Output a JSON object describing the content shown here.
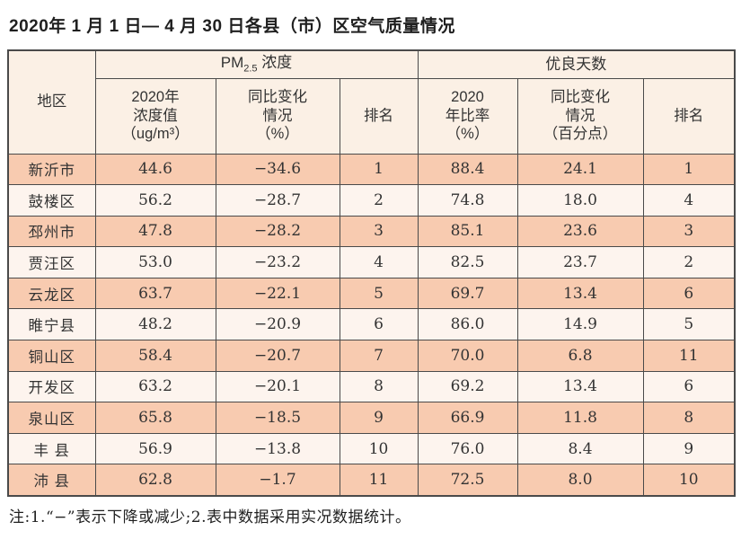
{
  "title": "2020年 1 月 1 日— 4 月 30 日各县（市）区空气质量情况",
  "note": "注:1.“−”表示下降或减少;2.表中数据采用实况数据统计。",
  "colors": {
    "row_odd": "#f8cbb0",
    "row_even": "#fdf4ee",
    "header_bg": "#fbf0e5",
    "border": "#4a4a4a",
    "text": "#333333"
  },
  "table": {
    "header": {
      "area": "地区",
      "pm_prefix": "PM",
      "pm_sub": "2.5",
      "pm_rest": " 浓度",
      "days_group": "优良天数",
      "pm_value": "2020年\n浓度值\n（ug/m³）",
      "pm_change": "同比变化\n情况\n（%）",
      "pm_rank": "排名",
      "days_rate": "2020\n年比率\n（%）",
      "days_change": "同比变化\n情况\n（百分点）",
      "days_rank": "排名"
    },
    "rows": [
      {
        "area": "新沂市",
        "pm_value": "44.6",
        "pm_change": "−34.6",
        "pm_rank": "1",
        "days_rate": "88.4",
        "days_change": "24.1",
        "days_rank": "1"
      },
      {
        "area": "鼓楼区",
        "pm_value": "56.2",
        "pm_change": "−28.7",
        "pm_rank": "2",
        "days_rate": "74.8",
        "days_change": "18.0",
        "days_rank": "4"
      },
      {
        "area": "邳州市",
        "pm_value": "47.8",
        "pm_change": "−28.2",
        "pm_rank": "3",
        "days_rate": "85.1",
        "days_change": "23.6",
        "days_rank": "3"
      },
      {
        "area": "贾汪区",
        "pm_value": "53.0",
        "pm_change": "−23.2",
        "pm_rank": "4",
        "days_rate": "82.5",
        "days_change": "23.7",
        "days_rank": "2"
      },
      {
        "area": "云龙区",
        "pm_value": "63.7",
        "pm_change": "−22.1",
        "pm_rank": "5",
        "days_rate": "69.7",
        "days_change": "13.4",
        "days_rank": "6"
      },
      {
        "area": "睢宁县",
        "pm_value": "48.2",
        "pm_change": "−20.9",
        "pm_rank": "6",
        "days_rate": "86.0",
        "days_change": "14.9",
        "days_rank": "5"
      },
      {
        "area": "铜山区",
        "pm_value": "58.4",
        "pm_change": "−20.7",
        "pm_rank": "7",
        "days_rate": "70.0",
        "days_change": "6.8",
        "days_rank": "11"
      },
      {
        "area": "开发区",
        "pm_value": "63.2",
        "pm_change": "−20.1",
        "pm_rank": "8",
        "days_rate": "69.2",
        "days_change": "13.4",
        "days_rank": "6"
      },
      {
        "area": "泉山区",
        "pm_value": "65.8",
        "pm_change": "−18.5",
        "pm_rank": "9",
        "days_rate": "66.9",
        "days_change": "11.8",
        "days_rank": "8"
      },
      {
        "area": "丰 县",
        "pm_value": "56.9",
        "pm_change": "−13.8",
        "pm_rank": "10",
        "days_rate": "76.0",
        "days_change": "8.4",
        "days_rank": "9"
      },
      {
        "area": "沛 县",
        "pm_value": "62.8",
        "pm_change": "−1.7",
        "pm_rank": "11",
        "days_rate": "72.5",
        "days_change": "8.0",
        "days_rank": "10"
      }
    ]
  }
}
